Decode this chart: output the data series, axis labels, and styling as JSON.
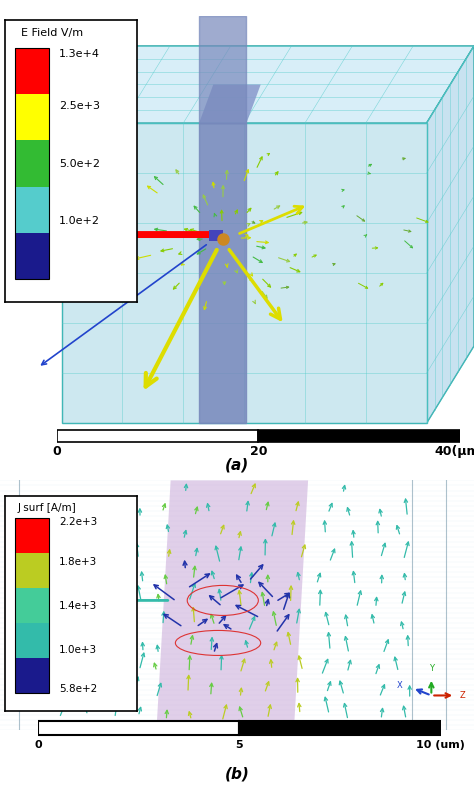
{
  "fig_width": 4.74,
  "fig_height": 7.94,
  "dpi": 100,
  "background_color": "#ffffff",
  "panel_a": {
    "label": "(a)",
    "legend_title": "E Field V/m",
    "legend_items": [
      {
        "label": "1.3e+4",
        "color": "#ff0000"
      },
      {
        "label": "2.5e+3",
        "color": "#ffff00"
      },
      {
        "label": "5.0e+2",
        "color": "#33bb33"
      },
      {
        "label": "1.0e+2",
        "color": "#55cccc"
      },
      {
        "label": "",
        "color": "#1a1a8c"
      }
    ],
    "scalebar_left_label": "0",
    "scalebar_mid_label": "20",
    "scalebar_right_label": "40(μm)",
    "sim_bg_color": "#cde8f0",
    "grid_color": "#55cccc",
    "box_color": "#33aaaa",
    "tsv_color": "#7788bb"
  },
  "panel_b": {
    "label": "(b)",
    "legend_title": "J surf [A/m]",
    "legend_items": [
      {
        "label": "2.2e+3",
        "color": "#ff0000"
      },
      {
        "label": "1.8e+3",
        "color": "#bbcc22"
      },
      {
        "label": "1.4e+3",
        "color": "#44cc99"
      },
      {
        "label": "1.0e+3",
        "color": "#33bbaa"
      },
      {
        "label": "5.8e+2",
        "color": "#1a1a8c"
      }
    ],
    "scalebar_left_label": "0",
    "scalebar_mid_label": "5",
    "scalebar_right_label": "10 (um)",
    "sim_bg_color": "#cce8f0",
    "tsv_color": "#c8a8d8",
    "arrow_teal": "#33bbaa",
    "arrow_yellow": "#bbcc22"
  }
}
